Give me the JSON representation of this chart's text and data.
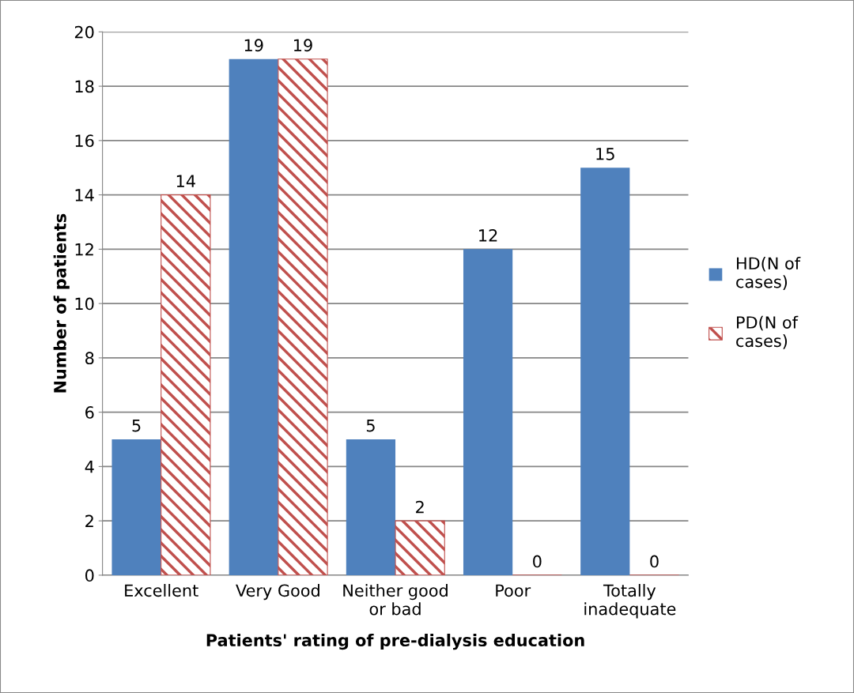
{
  "chart_data": {
    "type": "bar",
    "xlabel": "Patients' rating of pre-dialysis education",
    "ylabel": "Number of patients",
    "categories": [
      "Excellent",
      "Very Good",
      "Neither good or bad",
      "Poor",
      "Totally inadequate"
    ],
    "series": [
      {
        "name": "HD(N of cases)",
        "color": "#4f81bd",
        "values": [
          5,
          19,
          5,
          12,
          15
        ]
      },
      {
        "name": "PD(N of cases)",
        "color": "#c0504d",
        "values": [
          14,
          19,
          2,
          0,
          0
        ]
      }
    ],
    "ylim": [
      0,
      20
    ],
    "yticks": [
      0,
      2,
      4,
      6,
      8,
      10,
      12,
      14,
      16,
      18,
      20
    ],
    "grid": "y",
    "legend": "right",
    "data_labels": true
  }
}
